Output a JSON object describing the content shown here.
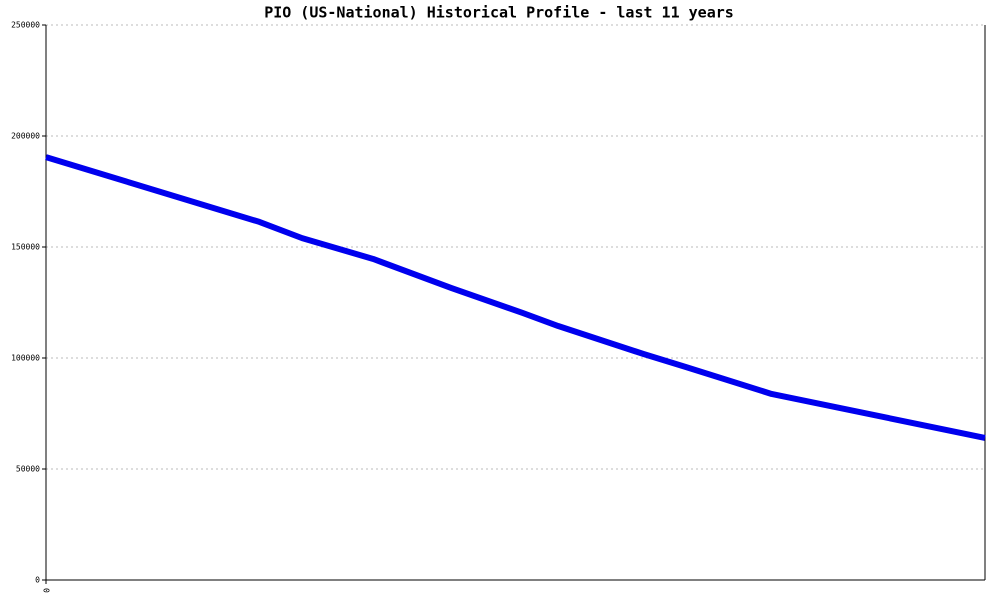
{
  "chart_data": {
    "type": "line",
    "title": "PIO (US-National) Historical Profile - last 11 years",
    "x": [
      0,
      24,
      30,
      36,
      46,
      57,
      67,
      72,
      84,
      90,
      102,
      132
    ],
    "series": [
      {
        "name": "PIO",
        "color": "#0000ee",
        "values": [
          190500,
          167100,
          161300,
          154000,
          144600,
          131500,
          120300,
          114400,
          101800,
          95900,
          83800,
          64000
        ]
      }
    ],
    "xlim": [
      0,
      132
    ],
    "xticks": [
      0
    ],
    "ylim": [
      0,
      250000
    ],
    "yticks": [
      0,
      50000,
      100000,
      150000,
      200000,
      250000
    ],
    "grid": true
  }
}
